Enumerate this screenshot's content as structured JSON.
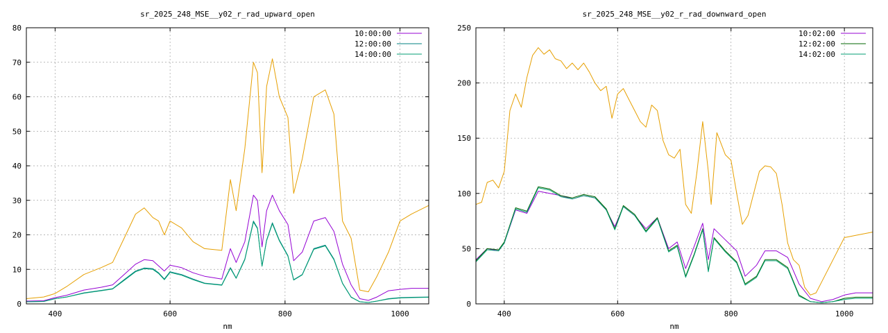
{
  "colors": {
    "series1": "#9400d3",
    "series2": "#008080",
    "series3": "#009e73",
    "series4": "#e69f00"
  },
  "chart_data": [
    {
      "type": "line",
      "title": "sr_2025_248_MSE__y02_r_rad_upward_open",
      "xlabel": "nm",
      "ylabel": "",
      "xlim": [
        350,
        1050
      ],
      "ylim": [
        0,
        80
      ],
      "xticks": [
        400,
        600,
        800,
        1000
      ],
      "yticks": [
        0,
        10,
        20,
        30,
        40,
        50,
        60,
        70,
        80
      ],
      "grid": true,
      "legend_position": "top-right",
      "legend": [
        "10:00:00",
        "12:00:00",
        "14:00:00"
      ],
      "series": [
        {
          "name": "10:00:00",
          "color": "#9400d3",
          "x": [
            350,
            380,
            400,
            420,
            450,
            480,
            500,
            520,
            540,
            555,
            570,
            580,
            590,
            600,
            620,
            640,
            660,
            690,
            705,
            715,
            730,
            745,
            752,
            760,
            768,
            778,
            790,
            805,
            815,
            830,
            850,
            870,
            885,
            900,
            915,
            930,
            945,
            960,
            980,
            1000,
            1020,
            1050
          ],
          "y": [
            0.8,
            0.9,
            1.8,
            2.5,
            4.0,
            4.8,
            5.5,
            8.5,
            11.5,
            12.8,
            12.5,
            11.0,
            9.5,
            11.2,
            10.5,
            9.0,
            8.0,
            7.2,
            16.0,
            12.0,
            18.0,
            31.5,
            30.0,
            16.5,
            27.0,
            31.5,
            27.0,
            23.0,
            12.5,
            15.0,
            24.0,
            25.0,
            21.0,
            11.5,
            5.5,
            1.5,
            1.0,
            2.0,
            3.8,
            4.2,
            4.5,
            4.5
          ]
        },
        {
          "name": "12:00:00",
          "color": "#008080",
          "x": [
            350,
            380,
            400,
            420,
            450,
            480,
            500,
            520,
            540,
            555,
            570,
            580,
            590,
            600,
            620,
            640,
            660,
            690,
            705,
            715,
            730,
            745,
            752,
            760,
            768,
            778,
            790,
            805,
            815,
            830,
            850,
            870,
            885,
            900,
            915,
            930,
            945,
            960,
            980,
            1000,
            1020,
            1050
          ],
          "y": [
            0.6,
            0.7,
            1.5,
            2.0,
            3.2,
            3.9,
            4.4,
            7.0,
            9.5,
            10.4,
            10.2,
            9.0,
            7.2,
            9.3,
            8.5,
            7.2,
            6.0,
            5.5,
            10.5,
            7.5,
            13.0,
            24.0,
            22.0,
            11.0,
            18.5,
            23.5,
            18.5,
            14.0,
            7.0,
            8.5,
            16.0,
            17.0,
            13.0,
            6.0,
            2.0,
            0.6,
            0.4,
            0.8,
            1.5,
            1.8,
            1.9,
            2.0
          ]
        },
        {
          "name": "14:00:00",
          "color": "#009e73",
          "x": [
            350,
            380,
            400,
            420,
            450,
            480,
            500,
            520,
            540,
            555,
            570,
            580,
            590,
            600,
            620,
            640,
            660,
            690,
            705,
            715,
            730,
            745,
            752,
            760,
            768,
            778,
            790,
            805,
            815,
            830,
            850,
            870,
            885,
            900,
            915,
            930,
            945,
            960,
            980,
            1000,
            1020,
            1050
          ],
          "y": [
            0.6,
            0.7,
            1.5,
            2.0,
            3.1,
            3.8,
            4.3,
            6.8,
            9.3,
            10.2,
            10.0,
            8.8,
            7.0,
            9.1,
            8.3,
            7.0,
            5.9,
            5.4,
            10.3,
            7.4,
            12.8,
            23.7,
            21.8,
            10.9,
            18.3,
            23.2,
            18.3,
            13.8,
            6.9,
            8.4,
            15.8,
            16.8,
            12.8,
            5.9,
            1.9,
            0.6,
            0.4,
            0.8,
            1.4,
            1.7,
            1.8,
            1.9
          ]
        },
        {
          "name": "",
          "color": "#e69f00",
          "x": [
            350,
            380,
            400,
            420,
            450,
            480,
            500,
            520,
            540,
            555,
            570,
            580,
            590,
            600,
            620,
            640,
            660,
            690,
            705,
            715,
            730,
            745,
            752,
            760,
            768,
            778,
            790,
            805,
            815,
            830,
            850,
            870,
            885,
            900,
            915,
            930,
            945,
            960,
            980,
            1000,
            1020,
            1050
          ],
          "y": [
            1.5,
            2.0,
            3.0,
            5.0,
            8.5,
            10.5,
            12.0,
            19.0,
            26.0,
            27.8,
            25.0,
            24.0,
            20.0,
            24.0,
            22.0,
            18.0,
            16.0,
            15.5,
            36.0,
            27.0,
            45.0,
            70.0,
            67.0,
            38.0,
            63.0,
            71.0,
            60.0,
            54.0,
            32.0,
            42.0,
            60.0,
            62.0,
            55.0,
            24.0,
            19.0,
            4.0,
            3.5,
            8.0,
            15.0,
            24.0,
            26.0,
            28.5
          ]
        }
      ]
    },
    {
      "type": "line",
      "title": "sr_2025_248_MSE__y02_r_rad_downward_open",
      "xlabel": "nm",
      "ylabel": "",
      "xlim": [
        350,
        1050
      ],
      "ylim": [
        0,
        250
      ],
      "xticks": [
        400,
        600,
        800,
        1000
      ],
      "yticks": [
        0,
        50,
        100,
        150,
        200,
        250
      ],
      "grid": true,
      "legend_position": "top-right",
      "legend": [
        "10:02:00",
        "12:02:00",
        "14:02:00"
      ],
      "series": [
        {
          "name": "10:02:00",
          "color": "#9400d3",
          "x": [
            350,
            370,
            390,
            400,
            420,
            440,
            460,
            480,
            500,
            520,
            540,
            560,
            580,
            595,
            610,
            630,
            650,
            670,
            690,
            705,
            720,
            735,
            750,
            760,
            770,
            790,
            810,
            825,
            845,
            860,
            880,
            900,
            920,
            940,
            960,
            980,
            1000,
            1020,
            1050
          ],
          "y": [
            40,
            50,
            48,
            55,
            85,
            82,
            102,
            100,
            98,
            95,
            98,
            96,
            85,
            70,
            88,
            80,
            68,
            78,
            50,
            56,
            32,
            52,
            73,
            40,
            68,
            58,
            48,
            25,
            35,
            48,
            48,
            42,
            18,
            5,
            2,
            4,
            8,
            10,
            10
          ]
        },
        {
          "name": "12:02:00",
          "color": "#006400",
          "x": [
            350,
            370,
            390,
            400,
            420,
            440,
            460,
            480,
            500,
            520,
            540,
            560,
            580,
            595,
            610,
            630,
            650,
            670,
            690,
            705,
            720,
            735,
            750,
            760,
            770,
            790,
            810,
            825,
            845,
            860,
            880,
            900,
            920,
            940,
            960,
            980,
            1000,
            1020,
            1050
          ],
          "y": [
            39,
            50,
            49,
            56,
            87,
            84,
            106,
            104,
            98,
            96,
            99,
            97,
            86,
            68,
            89,
            81,
            66,
            78,
            48,
            53,
            25,
            45,
            68,
            30,
            60,
            48,
            38,
            18,
            25,
            40,
            40,
            33,
            8,
            2,
            1,
            2,
            5,
            6,
            6
          ]
        },
        {
          "name": "14:02:00",
          "color": "#009e73",
          "x": [
            350,
            370,
            390,
            400,
            420,
            440,
            460,
            480,
            500,
            520,
            540,
            560,
            580,
            595,
            610,
            630,
            650,
            670,
            690,
            705,
            720,
            735,
            750,
            760,
            770,
            790,
            810,
            825,
            845,
            860,
            880,
            900,
            920,
            940,
            960,
            980,
            1000,
            1020,
            1050
          ],
          "y": [
            38,
            49,
            48,
            55,
            86,
            83,
            105,
            103,
            97,
            95,
            98,
            96,
            85,
            67,
            88,
            80,
            65,
            77,
            47,
            52,
            24,
            44,
            67,
            29,
            59,
            47,
            37,
            17,
            24,
            39,
            39,
            32,
            7,
            2,
            1,
            2,
            4,
            5,
            5
          ]
        },
        {
          "name": "",
          "color": "#e69f00",
          "x": [
            350,
            360,
            370,
            380,
            390,
            400,
            410,
            420,
            430,
            440,
            450,
            460,
            470,
            480,
            490,
            500,
            510,
            520,
            530,
            540,
            550,
            560,
            570,
            580,
            590,
            600,
            610,
            620,
            630,
            640,
            650,
            660,
            670,
            680,
            690,
            700,
            710,
            720,
            730,
            740,
            750,
            760,
            765,
            775,
            790,
            800,
            810,
            820,
            830,
            840,
            850,
            860,
            870,
            880,
            890,
            900,
            910,
            920,
            930,
            940,
            950,
            960,
            980,
            1000,
            1020,
            1050
          ],
          "y": [
            90,
            92,
            110,
            112,
            105,
            120,
            175,
            190,
            178,
            205,
            225,
            232,
            226,
            230,
            222,
            220,
            213,
            218,
            212,
            218,
            210,
            200,
            193,
            197,
            168,
            190,
            195,
            185,
            175,
            165,
            160,
            180,
            175,
            148,
            135,
            132,
            140,
            90,
            82,
            120,
            165,
            120,
            90,
            155,
            135,
            130,
            100,
            72,
            80,
            100,
            120,
            125,
            124,
            118,
            90,
            55,
            40,
            35,
            15,
            8,
            10,
            20,
            40,
            60,
            62,
            65
          ]
        }
      ]
    }
  ]
}
